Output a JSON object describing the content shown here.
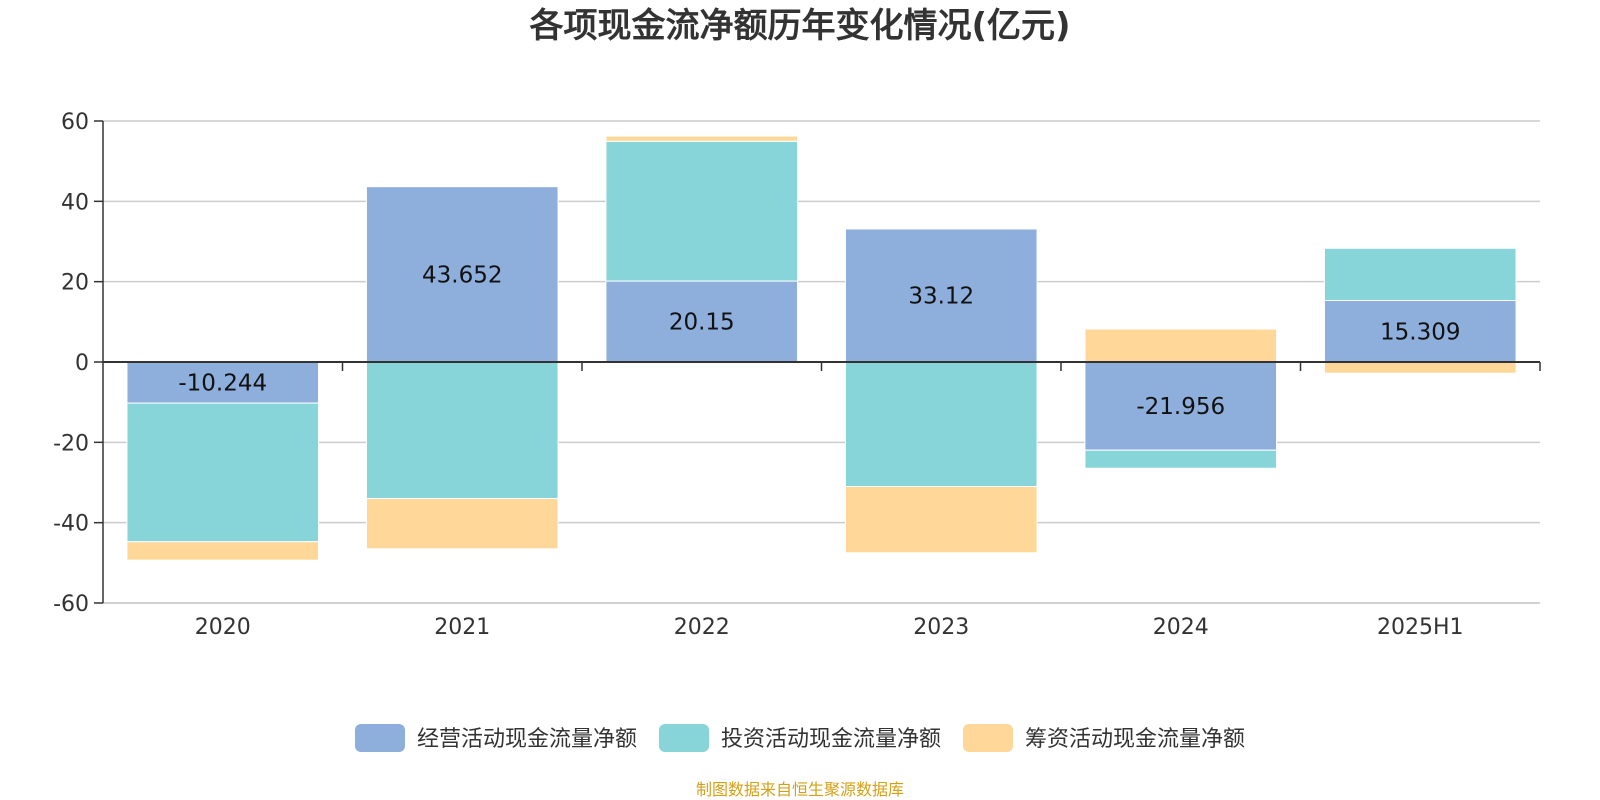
{
  "chart_data": {
    "type": "bar",
    "stacked": true,
    "title": "各项现金流净额历年变化情况(亿元)",
    "xlabel": "",
    "ylabel": "",
    "categories": [
      "2020",
      "2021",
      "2022",
      "2023",
      "2024",
      "2025H1"
    ],
    "ylim": [
      -60,
      60
    ],
    "yticks": [
      60,
      40,
      20,
      0,
      -20,
      -40,
      -60
    ],
    "grid": true,
    "legend_position": "bottom",
    "series": [
      {
        "name": "经营活动现金流量净额",
        "color": "#8eaedb",
        "values": [
          -10.244,
          43.652,
          20.15,
          33.12,
          -21.956,
          15.309
        ],
        "labels": [
          "-10.244",
          "43.652",
          "20.15",
          "33.12",
          "-21.956",
          "15.309"
        ]
      },
      {
        "name": "投资活动现金流量净额",
        "color": "#88d5d9",
        "values": [
          -34.5,
          -34.0,
          34.8,
          -31.0,
          -4.5,
          13.0
        ]
      },
      {
        "name": "筹资活动现金流量净额",
        "color": "#ffd899",
        "values": [
          -4.6,
          -12.5,
          1.3,
          -16.5,
          8.2,
          -2.8
        ]
      }
    ],
    "source": "制图数据来自恒生聚源数据库"
  }
}
